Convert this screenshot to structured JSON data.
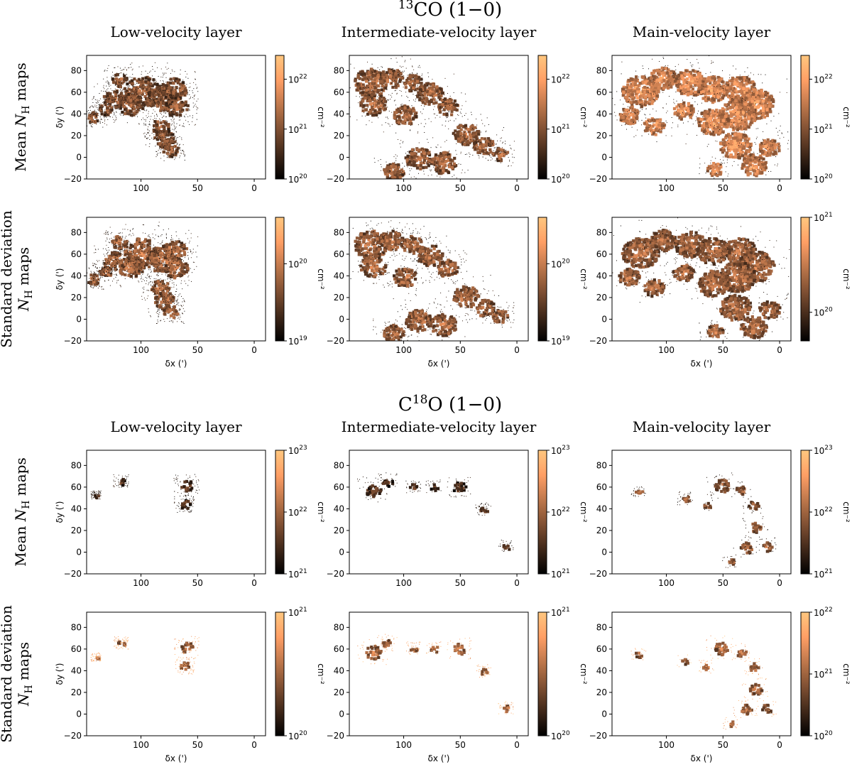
{
  "chart_data": {
    "type": "heatmap",
    "colormap": "copper",
    "x_axis": {
      "label": "δx (')",
      "range": [
        148,
        -10
      ],
      "ticks": [
        100,
        50,
        0
      ],
      "tick_labels": [
        "100",
        "50",
        "0"
      ]
    },
    "y_axis": {
      "label": "δy (')",
      "range": [
        -20,
        94
      ],
      "ticks": [
        -20,
        0,
        20,
        40,
        60,
        80
      ],
      "tick_labels": [
        "−20",
        "0",
        "20",
        "40",
        "60",
        "80"
      ]
    },
    "colorbar_label": "cm⁻²",
    "column_titles": [
      "Low-velocity layer",
      "Intermediate-velocity layer",
      "Main-velocity layer"
    ],
    "sections": [
      {
        "title_prefix": "13",
        "title_main": "CO (1−0)",
        "rows": [
          {
            "label": "Mean N_H maps",
            "label_parts": [
              "Mean ",
              "N",
              "H",
              " maps"
            ],
            "panels": [
              {
                "layer": "Low-velocity layer",
                "colorbar_range": [
                  1e+20,
                  3e+22
                ],
                "colorbar_ticks": [
                  {
                    "mant": "10",
                    "exp": "20",
                    "value": 1e+20
                  },
                  {
                    "mant": "10",
                    "exp": "21",
                    "value": 1e+21
                  },
                  {
                    "mant": "10",
                    "exp": "22",
                    "value": 1e+22
                  }
                ]
              },
              {
                "layer": "Intermediate-velocity layer",
                "colorbar_range": [
                  1e+20,
                  3e+22
                ],
                "colorbar_ticks": [
                  {
                    "mant": "10",
                    "exp": "20",
                    "value": 1e+20
                  },
                  {
                    "mant": "10",
                    "exp": "21",
                    "value": 1e+21
                  },
                  {
                    "mant": "10",
                    "exp": "22",
                    "value": 1e+22
                  }
                ]
              },
              {
                "layer": "Main-velocity layer",
                "colorbar_range": [
                  1e+20,
                  3e+22
                ],
                "colorbar_ticks": [
                  {
                    "mant": "10",
                    "exp": "20",
                    "value": 1e+20
                  },
                  {
                    "mant": "10",
                    "exp": "21",
                    "value": 1e+21
                  },
                  {
                    "mant": "10",
                    "exp": "22",
                    "value": 1e+22
                  }
                ]
              }
            ]
          },
          {
            "label": "Standard deviation N_H maps",
            "label_parts": [
              "Standard deviation",
              "N",
              "H",
              " maps"
            ],
            "panels": [
              {
                "layer": "Low-velocity layer",
                "colorbar_range": [
                  1e+19,
                  4e+20
                ],
                "colorbar_ticks": [
                  {
                    "mant": "10",
                    "exp": "19",
                    "value": 1e+19
                  },
                  {
                    "mant": "10",
                    "exp": "20",
                    "value": 1e+20
                  }
                ]
              },
              {
                "layer": "Intermediate-velocity layer",
                "colorbar_range": [
                  1e+19,
                  4e+20
                ],
                "colorbar_ticks": [
                  {
                    "mant": "10",
                    "exp": "19",
                    "value": 1e+19
                  },
                  {
                    "mant": "10",
                    "exp": "20",
                    "value": 1e+20
                  }
                ]
              },
              {
                "layer": "Main-velocity layer",
                "colorbar_range": [
                  5e+19,
                  1e+21
                ],
                "colorbar_ticks": [
                  {
                    "mant": "10",
                    "exp": "20",
                    "value": 1e+20
                  },
                  {
                    "mant": "10",
                    "exp": "21",
                    "value": 1e+21
                  }
                ]
              }
            ]
          }
        ]
      },
      {
        "title_prefix": "",
        "title_main": "C",
        "title_super": "18",
        "title_suffix": "O (1−0)",
        "rows": [
          {
            "label": "Mean N_H maps",
            "label_parts": [
              "Mean ",
              "N",
              "H",
              " maps"
            ],
            "panels": [
              {
                "layer": "Low-velocity layer",
                "colorbar_range": [
                  1e+21,
                  1e+23
                ],
                "colorbar_ticks": [
                  {
                    "mant": "10",
                    "exp": "21",
                    "value": 1e+21
                  },
                  {
                    "mant": "10",
                    "exp": "22",
                    "value": 1e+22
                  },
                  {
                    "mant": "10",
                    "exp": "23",
                    "value": 1e+23
                  }
                ]
              },
              {
                "layer": "Intermediate-velocity layer",
                "colorbar_range": [
                  1e+21,
                  1e+23
                ],
                "colorbar_ticks": [
                  {
                    "mant": "10",
                    "exp": "21",
                    "value": 1e+21
                  },
                  {
                    "mant": "10",
                    "exp": "22",
                    "value": 1e+22
                  },
                  {
                    "mant": "10",
                    "exp": "23",
                    "value": 1e+23
                  }
                ]
              },
              {
                "layer": "Main-velocity layer",
                "colorbar_range": [
                  1e+21,
                  1e+23
                ],
                "colorbar_ticks": [
                  {
                    "mant": "10",
                    "exp": "21",
                    "value": 1e+21
                  },
                  {
                    "mant": "10",
                    "exp": "22",
                    "value": 1e+22
                  },
                  {
                    "mant": "10",
                    "exp": "23",
                    "value": 1e+23
                  }
                ]
              }
            ]
          },
          {
            "label": "Standard deviation N_H maps",
            "label_parts": [
              "Standard deviation",
              "N",
              "H",
              " maps"
            ],
            "panels": [
              {
                "layer": "Low-velocity layer",
                "colorbar_range": [
                  1e+20,
                  1e+21
                ],
                "colorbar_ticks": [
                  {
                    "mant": "10",
                    "exp": "20",
                    "value": 1e+20
                  },
                  {
                    "mant": "10",
                    "exp": "21",
                    "value": 1e+21
                  }
                ]
              },
              {
                "layer": "Intermediate-velocity layer",
                "colorbar_range": [
                  1e+20,
                  1e+21
                ],
                "colorbar_ticks": [
                  {
                    "mant": "10",
                    "exp": "20",
                    "value": 1e+20
                  },
                  {
                    "mant": "10",
                    "exp": "21",
                    "value": 1e+21
                  }
                ]
              },
              {
                "layer": "Main-velocity layer",
                "colorbar_range": [
                  1e+20,
                  1e+22
                ],
                "colorbar_ticks": [
                  {
                    "mant": "10",
                    "exp": "20",
                    "value": 1e+20
                  },
                  {
                    "mant": "10",
                    "exp": "21",
                    "value": 1e+21
                  },
                  {
                    "mant": "10",
                    "exp": "22",
                    "value": 1e+22
                  }
                ]
              }
            ]
          }
        ]
      }
    ]
  }
}
